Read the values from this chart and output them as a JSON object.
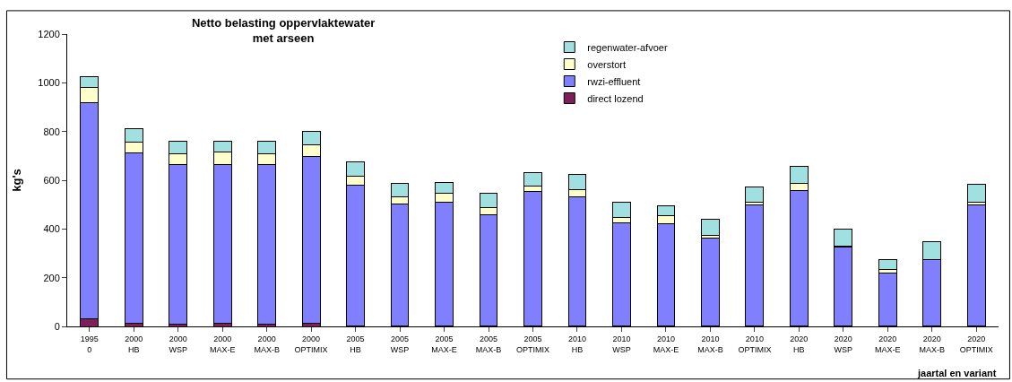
{
  "chart_data": {
    "type": "bar",
    "title": "Netto belasting oppervlaktewater\nmet arseen",
    "xlabel": "jaartal en variant",
    "ylabel": "kg's",
    "categories": [
      "1995\n0",
      "2000\nHB",
      "2000\nWSP",
      "2000\nMAX-E",
      "2000\nMAX-B",
      "2000\nOPTIMIX",
      "2005\nHB",
      "2005\nWSP",
      "2005\nMAX-E",
      "2005\nMAX-B",
      "2005\nOPTIMIX",
      "2010\nHB",
      "2010\nWSP",
      "2010\nMAX-E",
      "2010\nMAX-B",
      "2010\nOPTIMIX",
      "2020\nHB",
      "2020\nWSP",
      "2020\nMAX-E",
      "2020\nMAX-B",
      "2020\nOPTIMIX"
    ],
    "stacked": true,
    "ylim": [
      0,
      1200
    ],
    "yticks": [
      0,
      200,
      400,
      600,
      800,
      1000,
      1200
    ],
    "legend": "top",
    "grid": false,
    "series": [
      {
        "name": "direct lozend",
        "color": "#7f1f5a",
        "values": [
          30,
          14,
          10,
          14,
          10,
          14,
          3,
          3,
          3,
          3,
          3,
          2,
          2,
          2,
          2,
          2,
          2,
          2,
          2,
          2,
          2
        ]
      },
      {
        "name": "rwzi-effluent",
        "color": "#8080ff",
        "values": [
          888,
          697,
          653,
          652,
          653,
          682,
          576,
          500,
          506,
          457,
          551,
          531,
          424,
          421,
          362,
          497,
          557,
          324,
          216,
          271,
          498
        ]
      },
      {
        "name": "overstort",
        "color": "#ffffcc",
        "values": [
          62,
          45,
          45,
          49,
          45,
          49,
          37,
          29,
          37,
          28,
          21,
          27,
          22,
          30,
          11,
          12,
          27,
          3,
          17,
          3,
          11
        ]
      },
      {
        "name": "regenwater-afvoer",
        "color": "#a0e0e0",
        "values": [
          45,
          56,
          52,
          45,
          52,
          54,
          58,
          54,
          45,
          58,
          58,
          65,
          60,
          41,
          66,
          62,
          72,
          72,
          38,
          73,
          72
        ]
      }
    ]
  }
}
